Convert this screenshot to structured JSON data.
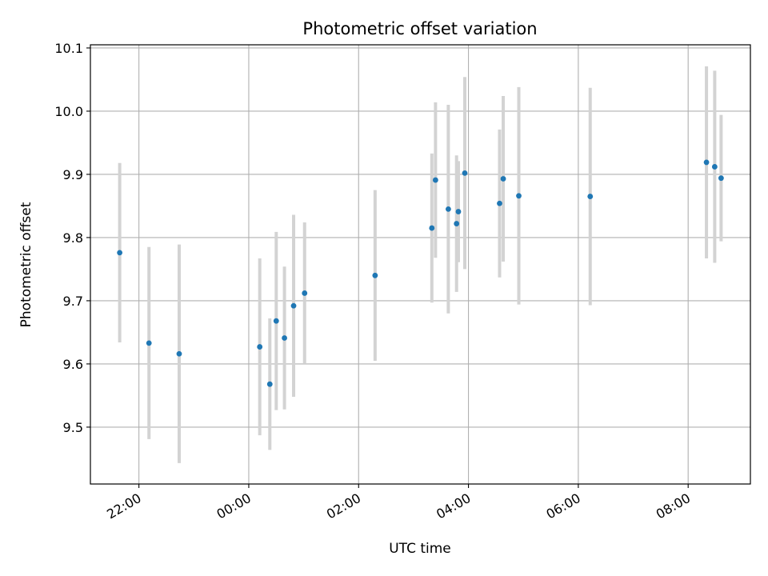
{
  "chart_data": {
    "type": "scatter",
    "title": "Photometric offset variation",
    "xlabel": "UTC time",
    "ylabel": "Photometric offset",
    "x_unit": "UTC time, hours across midnight (21:00 to 09:00)",
    "xlim": [
      "21:07",
      "09:08"
    ],
    "ylim": [
      9.41,
      10.105
    ],
    "grid": true,
    "x_ticks": [
      "22:00",
      "00:00",
      "02:00",
      "04:00",
      "06:00",
      "08:00"
    ],
    "y_ticks": [
      "9.5",
      "9.6",
      "9.7",
      "9.8",
      "9.9",
      "10.0",
      "10.1"
    ],
    "marker_color": "#1f77b4",
    "errorbar_color": "#d3d3d3",
    "points": [
      {
        "time": "21:39",
        "y": 9.776,
        "err": 0.142
      },
      {
        "time": "22:11",
        "y": 9.633,
        "err": 0.152
      },
      {
        "time": "22:44",
        "y": 9.616,
        "err": 0.173
      },
      {
        "time": "00:12",
        "y": 9.627,
        "err": 0.14
      },
      {
        "time": "00:23",
        "y": 9.568,
        "err": 0.104
      },
      {
        "time": "00:30",
        "y": 9.668,
        "err": 0.141
      },
      {
        "time": "00:39",
        "y": 9.641,
        "err": 0.113
      },
      {
        "time": "00:49",
        "y": 9.692,
        "err": 0.144
      },
      {
        "time": "01:01",
        "y": 9.712,
        "err": 0.112
      },
      {
        "time": "02:18",
        "y": 9.74,
        "err": 0.135
      },
      {
        "time": "03:20",
        "y": 9.815,
        "err": 0.118
      },
      {
        "time": "03:24",
        "y": 9.891,
        "err": 0.123
      },
      {
        "time": "03:38",
        "y": 9.845,
        "err": 0.165
      },
      {
        "time": "03:47",
        "y": 9.822,
        "err": 0.108
      },
      {
        "time": "03:49",
        "y": 9.841,
        "err": 0.08
      },
      {
        "time": "03:56",
        "y": 9.902,
        "err": 0.152
      },
      {
        "time": "04:34",
        "y": 9.854,
        "err": 0.117
      },
      {
        "time": "04:38",
        "y": 9.893,
        "err": 0.131
      },
      {
        "time": "04:55",
        "y": 9.866,
        "err": 0.172
      },
      {
        "time": "06:13",
        "y": 9.865,
        "err": 0.172
      },
      {
        "time": "08:20",
        "y": 9.919,
        "err": 0.152
      },
      {
        "time": "08:29",
        "y": 9.912,
        "err": 0.152
      },
      {
        "time": "08:36",
        "y": 9.894,
        "err": 0.1
      }
    ]
  }
}
